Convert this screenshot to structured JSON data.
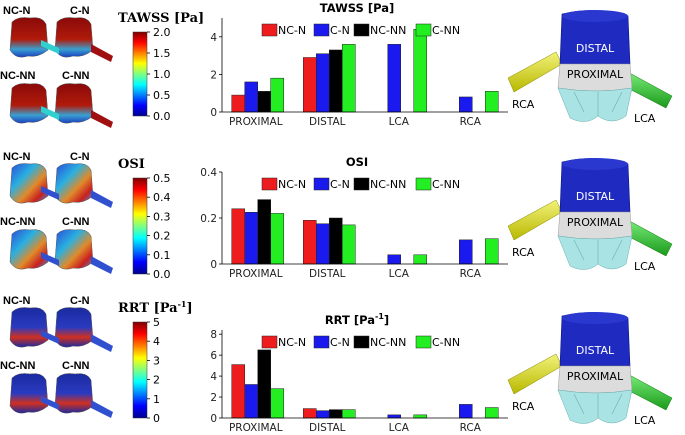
{
  "colors": {
    "series": [
      "#ee1c1c",
      "#1a1aee",
      "#000000",
      "#22ee22"
    ],
    "distal": "#1f2bc0",
    "proximal": "#dcdcdc",
    "valve": "#a9e3e3",
    "rca": "#e3e31a",
    "lca": "#2fd12f"
  },
  "rows": [
    {
      "sample_labels": [
        "NC-N",
        "C-N",
        "NC-NN",
        "C-NN"
      ],
      "colorbar": {
        "title": "TAWSS [Pa]",
        "ticks": [
          "2.0",
          "1.5",
          "1.0",
          "0.5",
          "0.0"
        ]
      },
      "model_labels": {
        "distal": "DISTAL",
        "proximal": "PROXIMAL",
        "rca": "RCA",
        "lca": "LCA"
      }
    },
    {
      "sample_labels": [
        "NC-N",
        "C-N",
        "NC-NN",
        "C-NN"
      ],
      "colorbar": {
        "title": "OSI",
        "ticks": [
          "0.5",
          "0.4",
          "0.3",
          "0.2",
          "0.1",
          "0.0"
        ]
      },
      "model_labels": {
        "distal": "DISTAL",
        "proximal": "PROXIMAL",
        "rca": "RCA",
        "lca": "LCA"
      }
    },
    {
      "sample_labels": [
        "NC-N",
        "C-N",
        "NC-NN",
        "C-NN"
      ],
      "colorbar": {
        "title": "RRT [Pa",
        "title_sup": "-1",
        "title_end": "]",
        "ticks": [
          "5",
          "4",
          "3",
          "2",
          "1",
          "0"
        ]
      },
      "model_labels": {
        "distal": "DISTAL",
        "proximal": "PROXIMAL",
        "rca": "RCA",
        "lca": "LCA"
      }
    }
  ],
  "chart_data": [
    {
      "type": "bar",
      "title": "TAWSS [Pa]",
      "categories": [
        "PROXIMAL",
        "DISTAL",
        "LCA",
        "RCA"
      ],
      "ylim": [
        0,
        5
      ],
      "yticks": [
        0,
        2,
        4
      ],
      "ytick_labels": [
        "0",
        "2",
        "4"
      ],
      "series": [
        {
          "name": "NC-N",
          "values": [
            0.9,
            2.9,
            null,
            null
          ]
        },
        {
          "name": "C-N",
          "values": [
            1.6,
            3.1,
            3.6,
            0.8
          ]
        },
        {
          "name": "NC-NN",
          "values": [
            1.1,
            3.3,
            null,
            null
          ]
        },
        {
          "name": "C-NN",
          "values": [
            1.8,
            3.6,
            4.4,
            1.1
          ]
        }
      ]
    },
    {
      "type": "bar",
      "title": "OSI",
      "categories": [
        "PROXIMAL",
        "DISTAL",
        "LCA",
        "RCA"
      ],
      "ylim": [
        0,
        0.4
      ],
      "yticks": [
        0,
        0.2,
        0.4
      ],
      "ytick_labels": [
        "0",
        "0.2",
        "0.4"
      ],
      "series": [
        {
          "name": "NC-N",
          "values": [
            0.24,
            0.19,
            null,
            null
          ]
        },
        {
          "name": "C-N",
          "values": [
            0.225,
            0.175,
            0.04,
            0.105
          ]
        },
        {
          "name": "NC-NN",
          "values": [
            0.28,
            0.2,
            null,
            null
          ]
        },
        {
          "name": "C-NN",
          "values": [
            0.22,
            0.17,
            0.04,
            0.11
          ]
        }
      ]
    },
    {
      "type": "bar",
      "title": "RRT [Pa",
      "title_sup": "-1",
      "title_end": "]",
      "categories": [
        "PROXIMAL",
        "DISTAL",
        "LCA",
        "RCA"
      ],
      "ylim": [
        0,
        8.4
      ],
      "yticks": [
        0,
        2,
        4,
        6,
        8
      ],
      "ytick_labels": [
        "0",
        "2",
        "4",
        "6",
        "8"
      ],
      "series": [
        {
          "name": "NC-N",
          "values": [
            5.1,
            0.9,
            null,
            null
          ]
        },
        {
          "name": "C-N",
          "values": [
            3.2,
            0.7,
            0.3,
            1.3
          ]
        },
        {
          "name": "NC-NN",
          "values": [
            6.5,
            0.8,
            null,
            null
          ]
        },
        {
          "name": "C-NN",
          "values": [
            2.8,
            0.8,
            0.3,
            1.0
          ]
        }
      ]
    }
  ]
}
